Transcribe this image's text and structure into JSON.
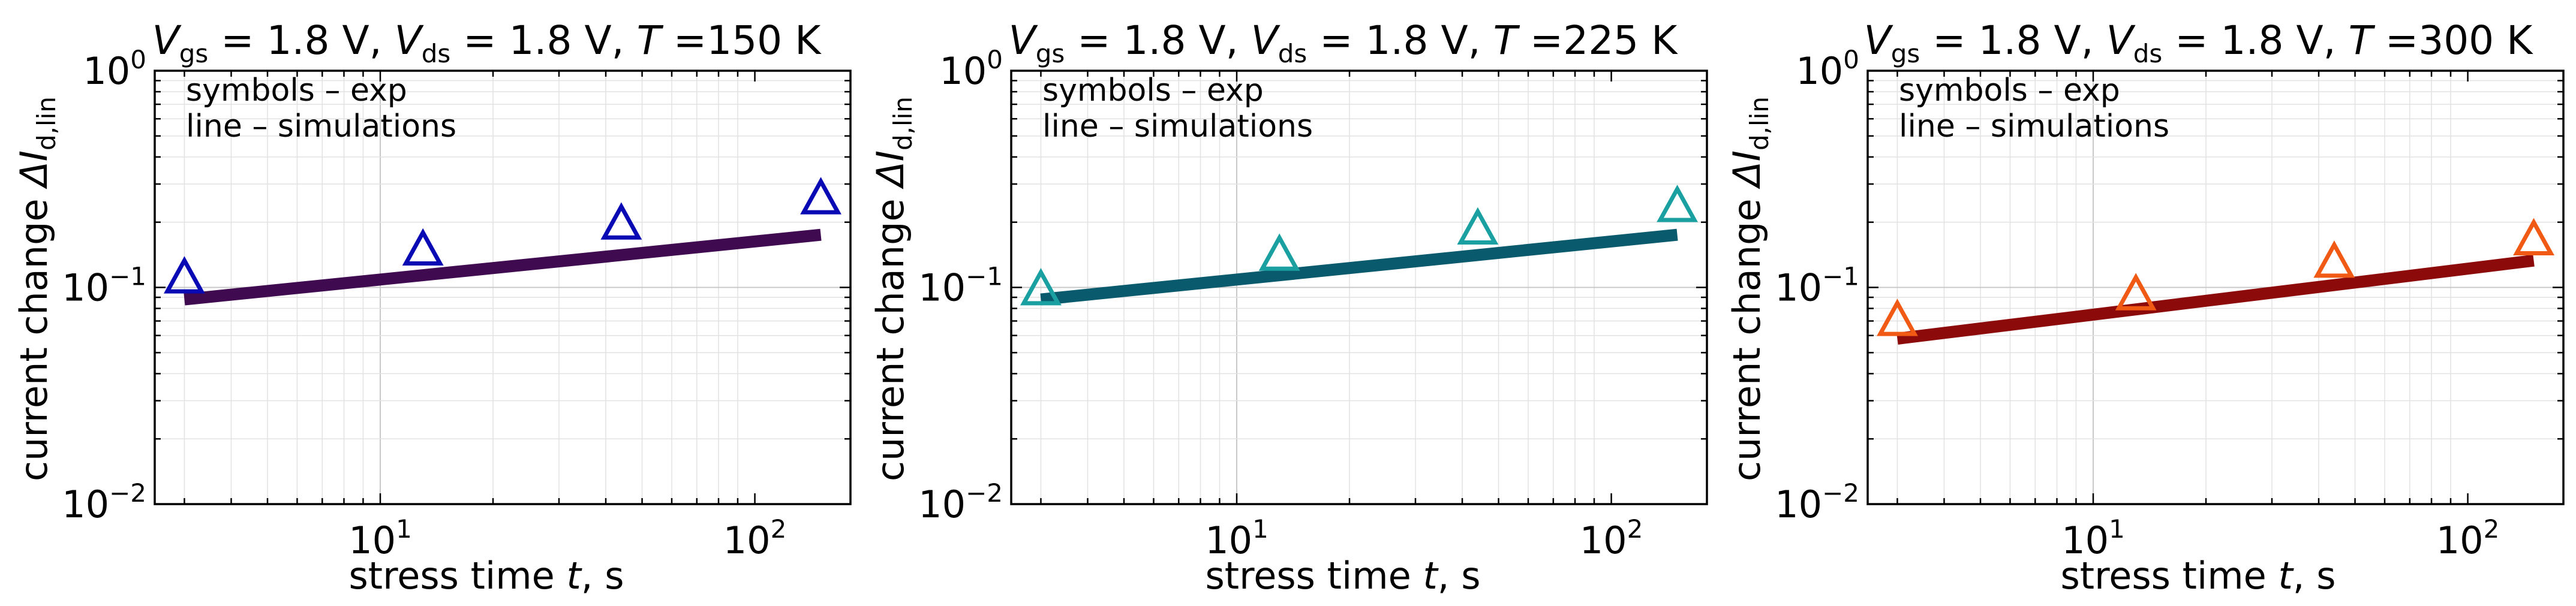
{
  "figure": {
    "panels": [
      {
        "title_parts": {
          "vgs_sym": "V",
          "vgs_sub": "gs",
          "vgs_val": " = 1.8 V,  ",
          "vds_sym": "V",
          "vds_sub": "ds",
          "vds_val": " = 1.8 V,  ",
          "t_sym": "T",
          "t_val": " =150 K"
        },
        "legend": {
          "exp": "symbols – exp",
          "sim": "line – simulations"
        },
        "colors": {
          "exp": "#0a0ab4",
          "sim": "#3f0a4f"
        }
      },
      {
        "title_parts": {
          "vgs_sym": "V",
          "vgs_sub": "gs",
          "vgs_val": " = 1.8 V,  ",
          "vds_sym": "V",
          "vds_sub": "ds",
          "vds_val": " = 1.8 V,  ",
          "t_sym": "T",
          "t_val": " =225 K"
        },
        "legend": {
          "exp": "symbols – exp",
          "sim": "line – simulations"
        },
        "colors": {
          "exp": "#1aa0a0",
          "sim": "#0a5a6e"
        }
      },
      {
        "title_parts": {
          "vgs_sym": "V",
          "vgs_sub": "gs",
          "vgs_val": " = 1.8 V,  ",
          "vds_sym": "V",
          "vds_sub": "ds",
          "vds_val": " = 1.8 V,  ",
          "t_sym": "T",
          "t_val": " =300 K"
        },
        "legend": {
          "exp": "symbols – exp",
          "sim": "line – simulations"
        },
        "colors": {
          "exp": "#f05a14",
          "sim": "#8c0a0a"
        }
      }
    ],
    "xlabel": {
      "text": "stress time ",
      "sym": "t",
      "unit": ", s"
    },
    "ylabel": {
      "text": "current change ",
      "sym": "ΔI",
      "sub": "d,lin"
    },
    "xticks": [
      {
        "base": "10",
        "exp": "1"
      },
      {
        "base": "10",
        "exp": "2"
      }
    ],
    "yticks": [
      {
        "base": "10",
        "exp": "0"
      },
      {
        "base": "10",
        "exp": "−1"
      },
      {
        "base": "10",
        "exp": "−2"
      }
    ]
  },
  "chart_data": [
    {
      "type": "scatter",
      "title": "Vgs = 1.8 V, Vds = 1.8 V, T =150 K",
      "xlabel": "stress time t, s",
      "ylabel": "current change ΔId,lin",
      "xscale": "log",
      "yscale": "log",
      "xlim": [
        2.5,
        180
      ],
      "ylim": [
        0.01,
        1.0
      ],
      "grid": true,
      "legend": "top-left",
      "series": [
        {
          "name": "symbols – exp",
          "x": [
            3,
            13,
            44,
            150
          ],
          "y": [
            0.11,
            0.148,
            0.195,
            0.255
          ]
        },
        {
          "name": "line – simulations",
          "x": [
            3,
            150
          ],
          "y": [
            0.088,
            0.175
          ]
        }
      ]
    },
    {
      "type": "scatter",
      "title": "Vgs = 1.8 V, Vds = 1.8 V, T =225 K",
      "xlabel": "stress time t, s",
      "ylabel": "current change ΔId,lin",
      "xscale": "log",
      "yscale": "log",
      "xlim": [
        2.5,
        180
      ],
      "ylim": [
        0.01,
        1.0
      ],
      "grid": true,
      "legend": "top-left",
      "series": [
        {
          "name": "symbols – exp",
          "x": [
            3,
            13,
            44,
            150
          ],
          "y": [
            0.097,
            0.14,
            0.185,
            0.235
          ]
        },
        {
          "name": "line – simulations",
          "x": [
            3,
            150
          ],
          "y": [
            0.088,
            0.175
          ]
        }
      ]
    },
    {
      "type": "scatter",
      "title": "Vgs = 1.8 V, Vds = 1.8 V, T =300 K",
      "xlabel": "stress time t, s",
      "ylabel": "current change ΔId,lin",
      "xscale": "log",
      "yscale": "log",
      "xlim": [
        2.5,
        180
      ],
      "ylim": [
        0.01,
        1.0
      ],
      "grid": true,
      "legend": "top-left",
      "series": [
        {
          "name": "symbols – exp",
          "x": [
            3,
            13,
            44,
            150
          ],
          "y": [
            0.07,
            0.092,
            0.13,
            0.165
          ]
        },
        {
          "name": "line – simulations",
          "x": [
            3,
            150
          ],
          "y": [
            0.058,
            0.133
          ]
        }
      ]
    }
  ]
}
